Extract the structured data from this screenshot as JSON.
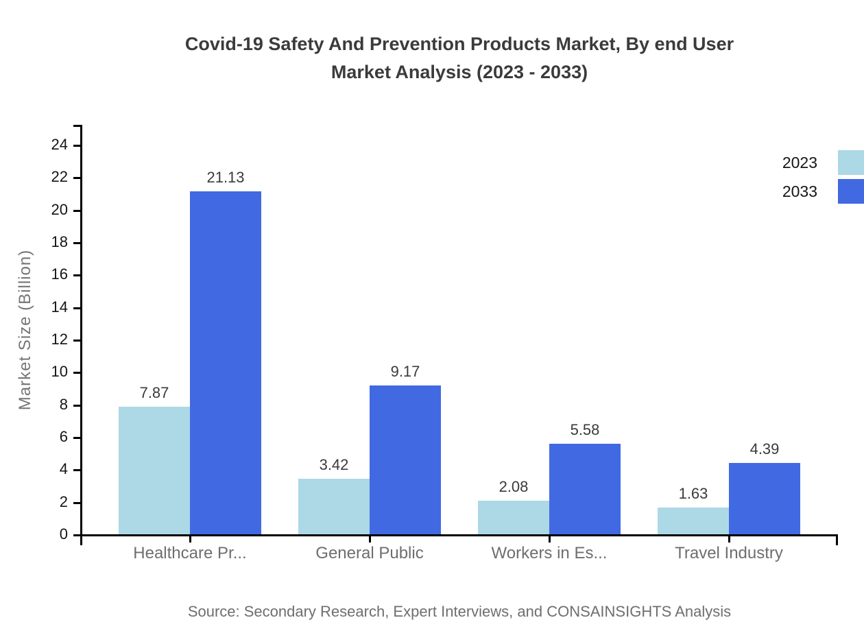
{
  "title": {
    "line1": "Covid-19 Safety And Prevention Products Market, By end User",
    "line2": "Market Analysis (2023 - 2033)"
  },
  "y_axis": {
    "title": "Market Size (Billion)"
  },
  "legend": {
    "position": "top-right",
    "items": [
      {
        "label": "2023",
        "color": "#ADD8E6"
      },
      {
        "label": "2033",
        "color": "#4169E1"
      }
    ]
  },
  "source_note": "Source: Secondary Research, Expert Interviews, and CONSAINSIGHTS Analysis",
  "colors": {
    "background": "#FFFFFF",
    "axis": "#000000",
    "title_text": "#3B3B3B",
    "y_tick_label_text": "#151515",
    "category_label_text": "#6E6E6E",
    "value_label_text": "#3A3A3A",
    "source_text": "#6E6E6E",
    "series_2023": "#ADD8E6",
    "series_2033": "#4169E1"
  },
  "chart_data": {
    "type": "bar",
    "title": "Covid-19 Safety And Prevention Products Market, By end User Market Analysis (2023 - 2033)",
    "categories": [
      "Healthcare Pr...",
      "General Public",
      "Workers in Es...",
      "Travel Industry"
    ],
    "series": [
      {
        "name": "2023",
        "color": "#ADD8E6",
        "values": [
          7.87,
          3.42,
          2.08,
          1.63
        ]
      },
      {
        "name": "2033",
        "color": "#4169E1",
        "values": [
          21.13,
          9.17,
          5.58,
          4.39
        ]
      }
    ],
    "xlabel": "",
    "ylabel": "Market Size (Billion)",
    "ylim": [
      0,
      24
    ],
    "ytick_step": 2,
    "yticks": [
      0,
      2,
      4,
      6,
      8,
      10,
      12,
      14,
      16,
      18,
      20,
      22,
      24
    ],
    "grid": false,
    "legend_position": "right-top",
    "value_labels": true,
    "source": "Source: Secondary Research, Expert Interviews, and CONSAINSIGHTS Analysis"
  }
}
